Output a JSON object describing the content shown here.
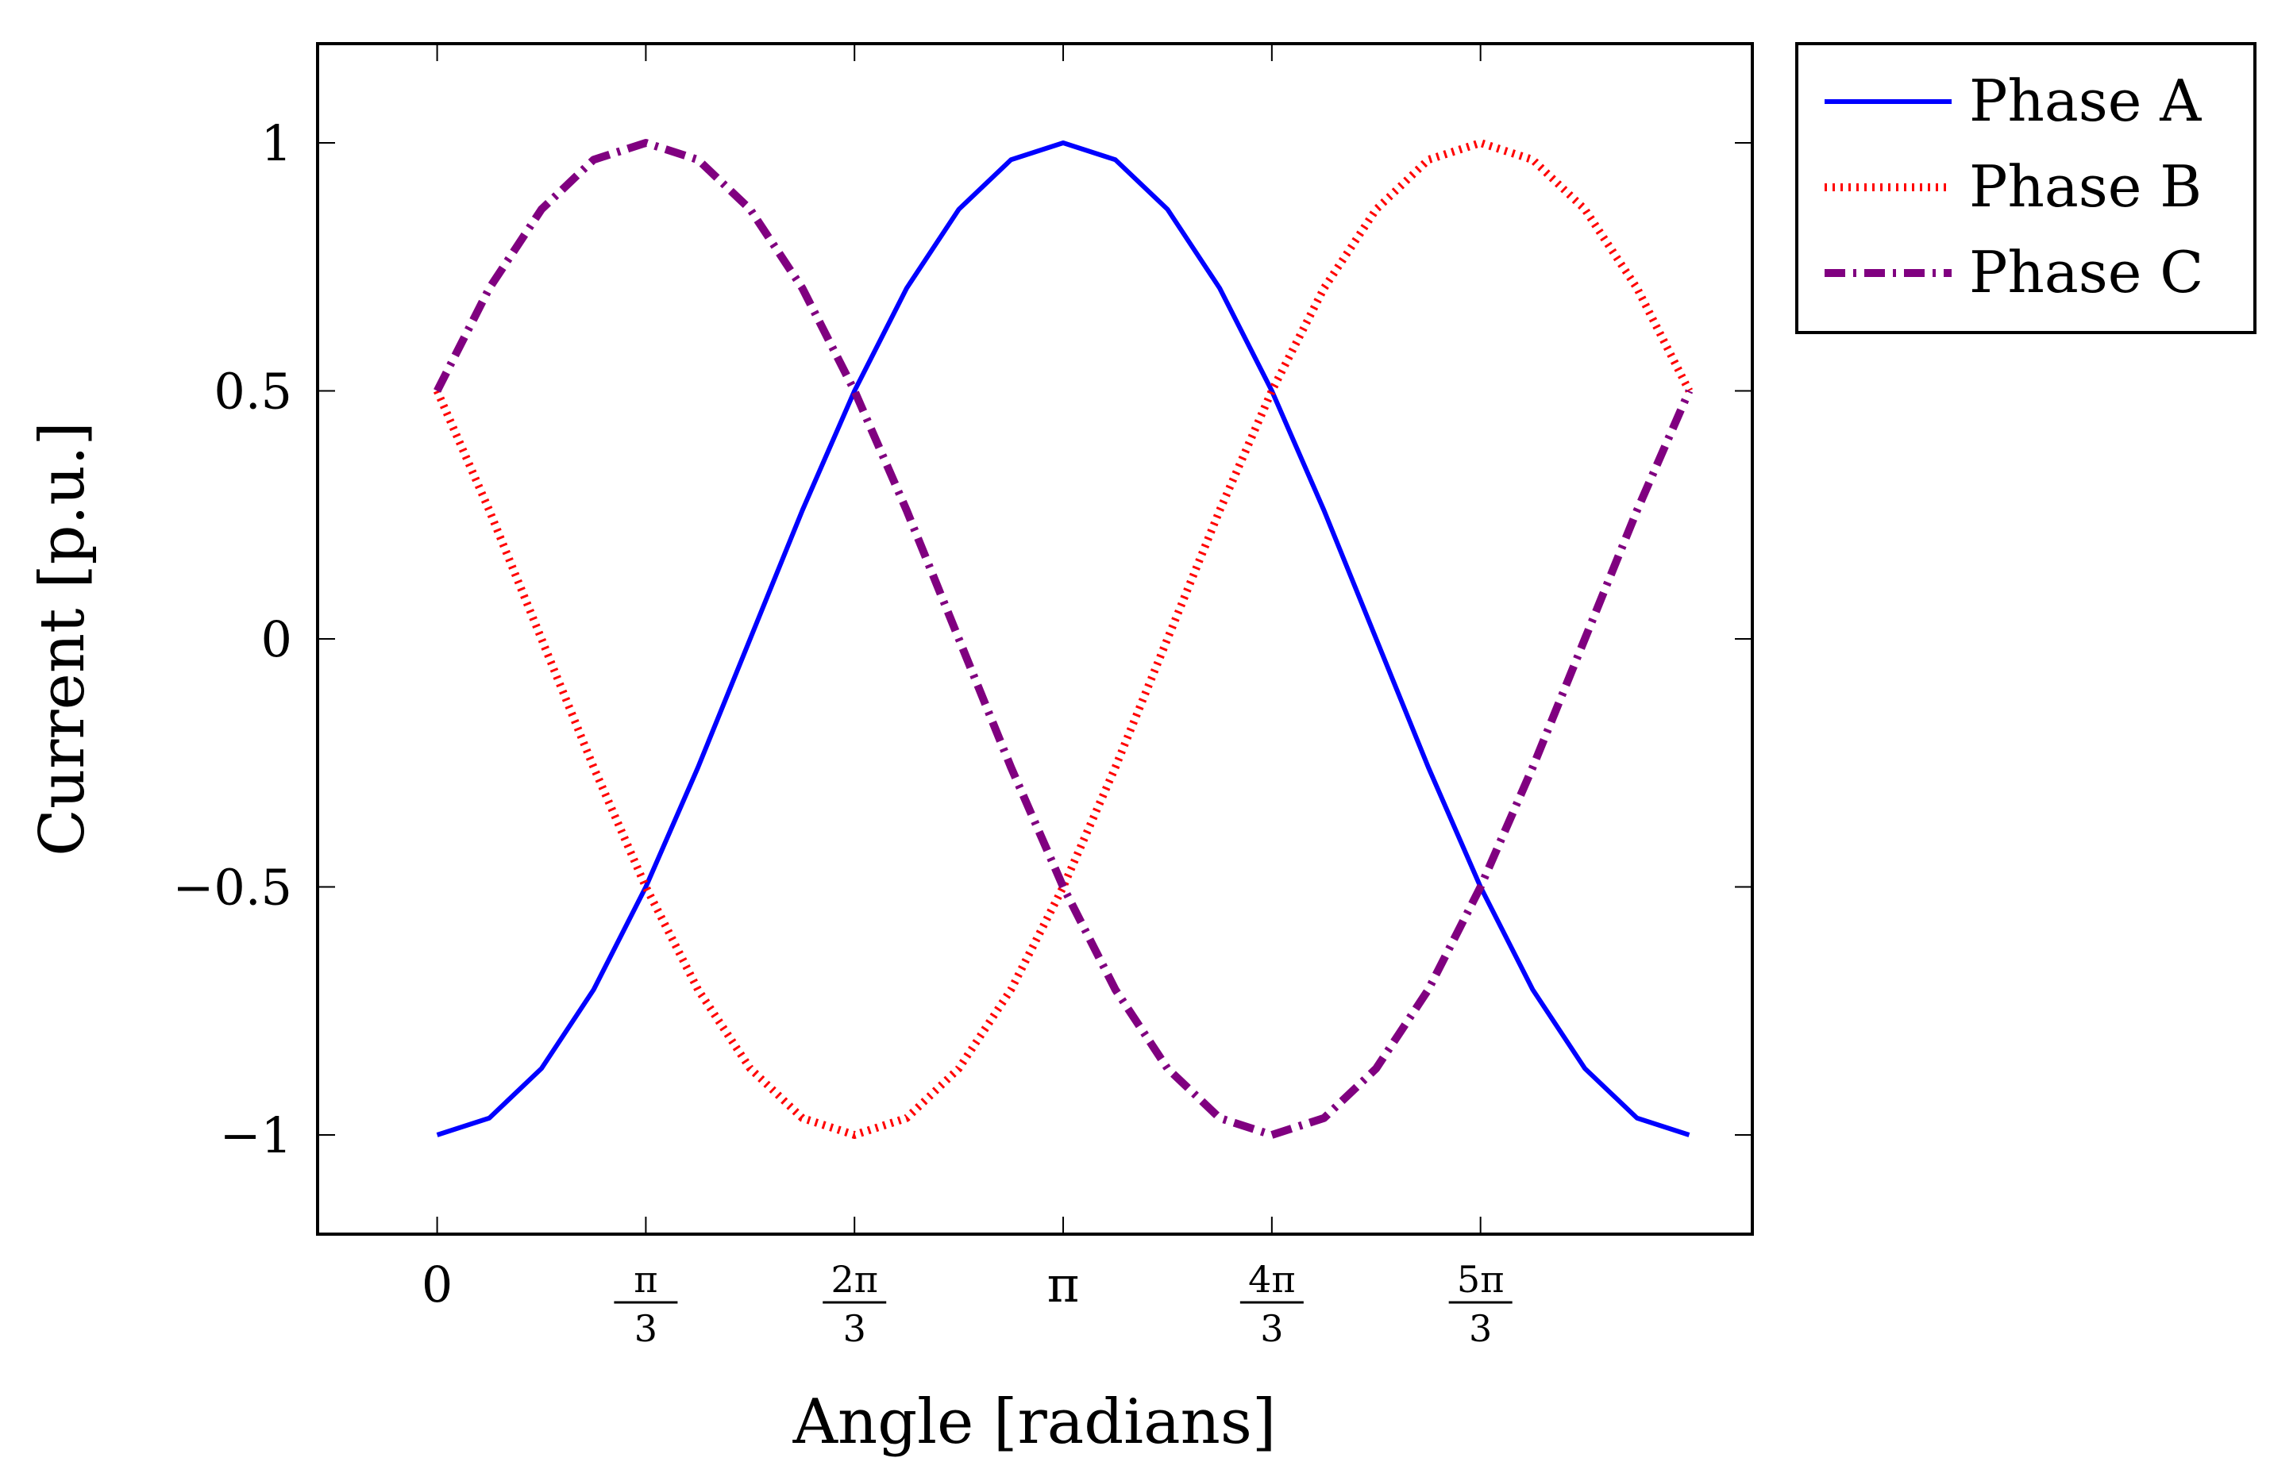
{
  "chart_data": {
    "type": "line",
    "title": "",
    "xlabel": "Angle [radians]",
    "ylabel": "Current [p.u.]",
    "xlim": [
      -0.6,
      6.6
    ],
    "ylim": [
      -1.2,
      1.2
    ],
    "grid": false,
    "legend_position": "outside-top-right",
    "x_ticks": [
      {
        "value": 0,
        "label": "0"
      },
      {
        "value": 1.0472,
        "label": "π/3",
        "numerator": "π",
        "denominator": "3"
      },
      {
        "value": 2.0944,
        "label": "2π/3",
        "numerator": "2π",
        "denominator": "3"
      },
      {
        "value": 3.1416,
        "label": "π"
      },
      {
        "value": 4.1888,
        "label": "4π/3",
        "numerator": "4π",
        "denominator": "3"
      },
      {
        "value": 5.236,
        "label": "5π/3",
        "numerator": "5π",
        "denominator": "3"
      }
    ],
    "y_ticks": [
      {
        "value": 1,
        "label": "1"
      },
      {
        "value": 0.5,
        "label": "0.5"
      },
      {
        "value": 0,
        "label": "0"
      },
      {
        "value": -0.5,
        "label": "−0.5"
      },
      {
        "value": -1,
        "label": "−1"
      }
    ],
    "x": [
      0,
      0.2618,
      0.5236,
      0.7854,
      1.0472,
      1.309,
      1.5708,
      1.8326,
      2.0944,
      2.3562,
      2.618,
      2.8798,
      3.1416,
      3.4034,
      3.6652,
      3.927,
      4.1888,
      4.4506,
      4.7124,
      4.9742,
      5.236,
      5.4978,
      5.7596,
      6.0214,
      6.2832
    ],
    "series": [
      {
        "name": "Phase A",
        "color": "#0000ff",
        "style": "solid",
        "values": [
          -1.0,
          -0.966,
          -0.866,
          -0.707,
          -0.5,
          -0.259,
          0.0,
          0.259,
          0.5,
          0.707,
          0.866,
          0.966,
          1.0,
          0.966,
          0.866,
          0.707,
          0.5,
          0.259,
          0.0,
          -0.259,
          -0.5,
          -0.707,
          -0.866,
          -0.966,
          -1.0
        ]
      },
      {
        "name": "Phase B",
        "color": "#ff0000",
        "style": "dotted",
        "values": [
          0.5,
          0.259,
          0.0,
          -0.259,
          -0.5,
          -0.707,
          -0.866,
          -0.966,
          -1.0,
          -0.966,
          -0.866,
          -0.707,
          -0.5,
          -0.259,
          0.0,
          0.259,
          0.5,
          0.707,
          0.866,
          0.966,
          1.0,
          0.966,
          0.866,
          0.707,
          0.5
        ]
      },
      {
        "name": "Phase C",
        "color": "#800080",
        "style": "dashdot",
        "values": [
          0.5,
          0.707,
          0.866,
          0.966,
          1.0,
          0.966,
          0.866,
          0.707,
          0.5,
          0.259,
          0.0,
          -0.259,
          -0.5,
          -0.707,
          -0.866,
          -0.966,
          -1.0,
          -0.966,
          -0.866,
          -0.707,
          -0.5,
          -0.259,
          0.0,
          0.259,
          0.5
        ]
      }
    ]
  }
}
